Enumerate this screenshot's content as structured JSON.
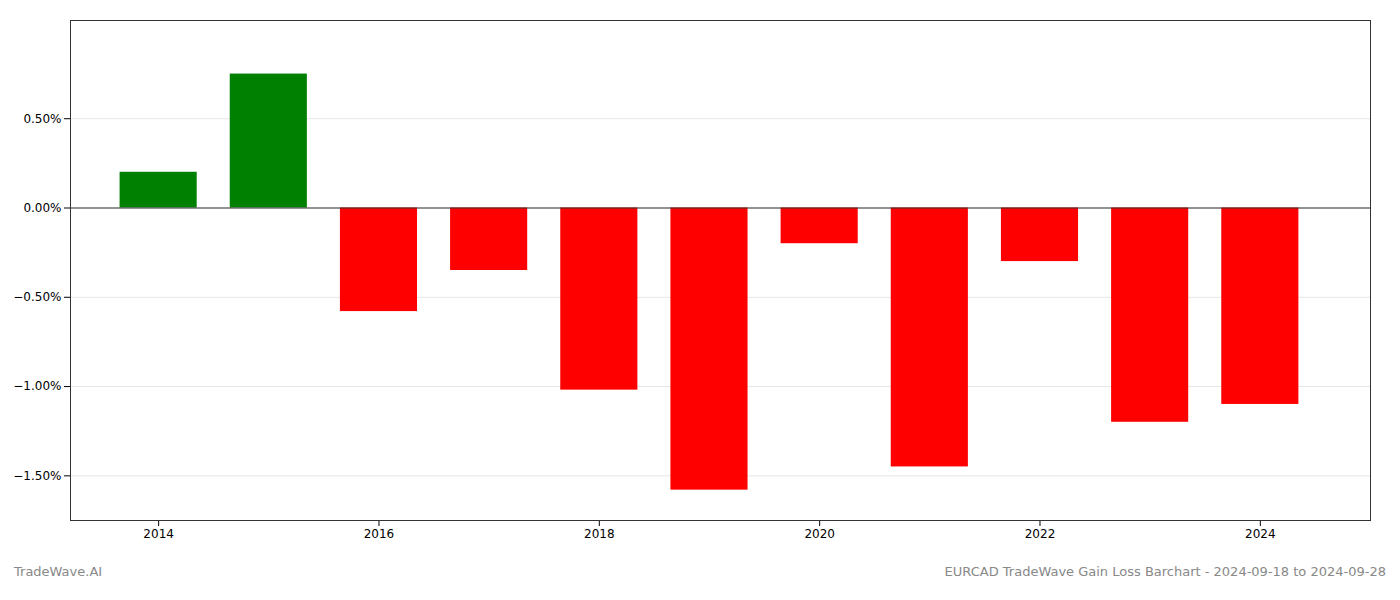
{
  "chart_data": {
    "type": "bar",
    "title": "EURCAD TradeWave Gain Loss Barchart - 2024-09-18 to 2024-09-28",
    "annotations": [
      "TradeWave.AI"
    ],
    "x": [
      2014,
      2015,
      2016,
      2017,
      2018,
      2019,
      2020,
      2021,
      2022,
      2023,
      2024
    ],
    "values": [
      0.2,
      0.75,
      -0.58,
      -0.35,
      -1.02,
      -1.58,
      -0.2,
      -1.45,
      -0.3,
      -1.2,
      -1.1
    ],
    "colors": [
      "#008000",
      "#008000",
      "#ff0000",
      "#ff0000",
      "#ff0000",
      "#ff0000",
      "#ff0000",
      "#ff0000",
      "#ff0000",
      "#ff0000",
      "#ff0000"
    ],
    "xlim": [
      2013.2,
      2025.0
    ],
    "xticks": [
      2014,
      2016,
      2018,
      2020,
      2022,
      2024
    ],
    "ylim": [
      -1.75,
      1.05
    ],
    "yticks": [
      {
        "value": -1.5,
        "label": "−1.50%"
      },
      {
        "value": -1.0,
        "label": "−1.00%"
      },
      {
        "value": -0.5,
        "label": "−0.50%"
      },
      {
        "value": 0.0,
        "label": "0.00%"
      },
      {
        "value": 0.5,
        "label": "0.50%"
      }
    ],
    "grid": true
  }
}
